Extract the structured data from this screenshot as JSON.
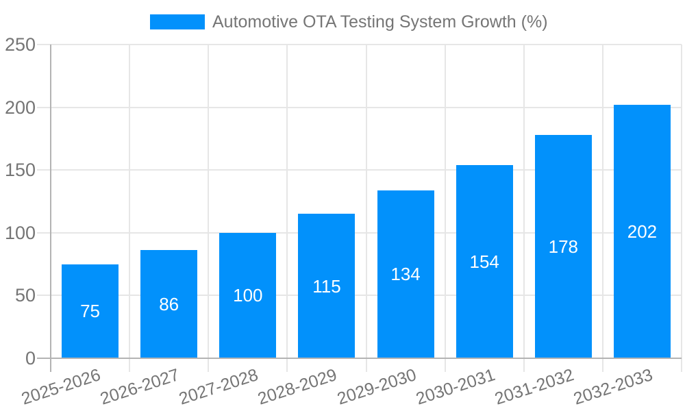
{
  "chart_data": {
    "type": "bar",
    "title": "Automotive OTA Testing System Growth (%)",
    "categories": [
      "2025-2026",
      "2026-2027",
      "2027-2028",
      "2028-2029",
      "2029-2030",
      "2030-2031",
      "2031-2032",
      "2032-2033"
    ],
    "values": [
      75,
      86,
      100,
      115,
      134,
      154,
      178,
      202
    ],
    "value_labels": [
      "75",
      "86",
      "100",
      "115",
      "134",
      "154",
      "178",
      "202"
    ],
    "xlabel": "",
    "ylabel": "",
    "ylim": [
      0,
      250
    ],
    "yticks": [
      "0",
      "50",
      "100",
      "150",
      "200",
      "250"
    ],
    "grid": "on",
    "legend_position": "top-center",
    "colors": {
      "bar": "#0291FB",
      "value_label": "#FFFFFF",
      "axis_text": "#757575",
      "gridline": "#E6E6E6",
      "axis_line": "#B3B3B3",
      "background": "#FFFFFF"
    }
  }
}
